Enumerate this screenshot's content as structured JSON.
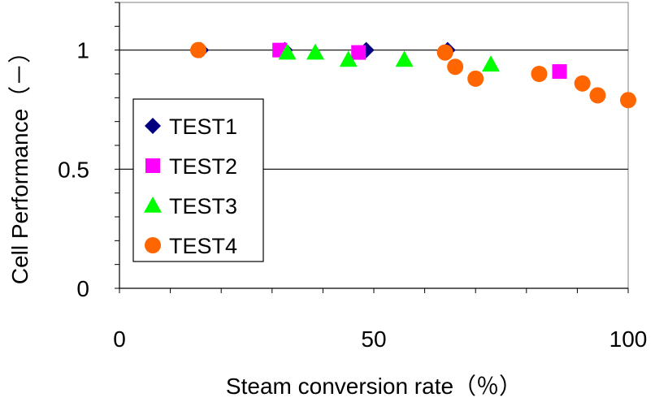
{
  "chart_data": {
    "type": "scatter",
    "title": "",
    "xlabel": "Steam conversion rate（％）",
    "ylabel": "Cell Performance（－）",
    "xlim": [
      0,
      100
    ],
    "ylim": [
      0,
      1.2
    ],
    "x_ticks": [
      "0",
      "50",
      "100"
    ],
    "y_ticks": [
      "0",
      "0.5",
      "1"
    ],
    "grid": "horizontal major lines at 0.5 and 1",
    "legend_position": "left-middle",
    "series": [
      {
        "name": "TEST1",
        "marker": "diamond",
        "color": "#000080",
        "points": [
          [
            16,
            1.0
          ],
          [
            32.5,
            1.0
          ],
          [
            48.5,
            1.0
          ],
          [
            64.5,
            1.0
          ]
        ]
      },
      {
        "name": "TEST2",
        "marker": "square",
        "color": "#ff00ff",
        "points": [
          [
            31.5,
            1.0
          ],
          [
            47,
            0.99
          ],
          [
            86.5,
            0.91
          ]
        ]
      },
      {
        "name": "TEST3",
        "marker": "triangle",
        "color": "#00ff00",
        "points": [
          [
            33,
            0.99
          ],
          [
            38.5,
            0.99
          ],
          [
            45,
            0.96
          ],
          [
            56,
            0.96
          ],
          [
            73,
            0.94
          ]
        ]
      },
      {
        "name": "TEST4",
        "marker": "circle",
        "color": "#ff6600",
        "points": [
          [
            15.5,
            1.0
          ],
          [
            64,
            0.99
          ],
          [
            66,
            0.93
          ],
          [
            70,
            0.88
          ],
          [
            82.5,
            0.9
          ],
          [
            91,
            0.86
          ],
          [
            94,
            0.81
          ],
          [
            100,
            0.79
          ]
        ]
      }
    ]
  }
}
